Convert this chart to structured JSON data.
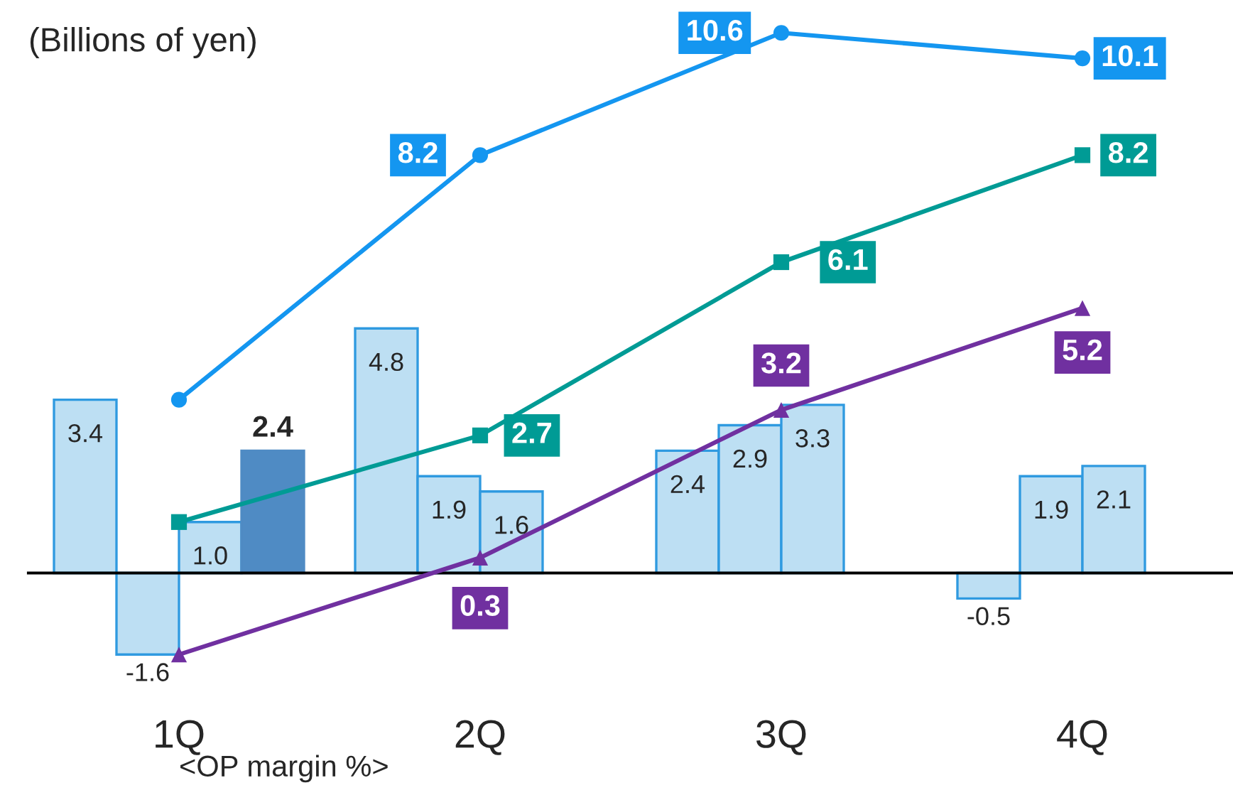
{
  "chart_data": {
    "type": "bar",
    "annotations": [
      "(Billions of yen)",
      "<OP margin %>"
    ],
    "categories": [
      "1Q",
      "2Q",
      "3Q",
      "4Q"
    ],
    "tick_labels": "x",
    "series": [
      {
        "color": "#bddff3",
        "values": [
          3.4,
          4.8,
          2.4,
          -0.5
        ],
        "value_labels": [
          "3.4",
          "4.8",
          "2.4",
          "-0.5"
        ]
      },
      {
        "color": "#bddff3",
        "values": [
          -1.6,
          1.9,
          2.9,
          1.9
        ],
        "value_labels": [
          "-1.6",
          "1.9",
          "2.9",
          "1.9"
        ]
      },
      {
        "color": "#bddff3",
        "values": [
          1.0,
          1.6,
          3.3,
          2.1
        ],
        "value_labels": [
          "1.0",
          "1.6",
          "3.3",
          "2.1"
        ]
      },
      {
        "color": "#4f8bc4",
        "values": [
          2.4,
          null,
          null,
          null
        ],
        "value_labels": [
          "2.4",
          null,
          null,
          null
        ]
      },
      {
        "type": "line",
        "marker": "circle",
        "color": "#1496f0",
        "values": [
          3.4,
          8.2,
          10.6,
          10.1
        ],
        "value_labels": [
          null,
          "8.2",
          "10.6",
          "10.1"
        ]
      },
      {
        "type": "line",
        "marker": "square",
        "color": "#009b95",
        "values": [
          1.0,
          2.7,
          6.1,
          8.2
        ],
        "value_labels": [
          null,
          "2.7",
          "6.1",
          "8.2"
        ]
      },
      {
        "type": "line",
        "marker": "triangle",
        "color": "#7030a0",
        "values": [
          -1.6,
          0.3,
          3.2,
          5.2
        ],
        "value_labels": [
          null,
          "0.3",
          "3.2",
          "5.2"
        ]
      }
    ]
  }
}
